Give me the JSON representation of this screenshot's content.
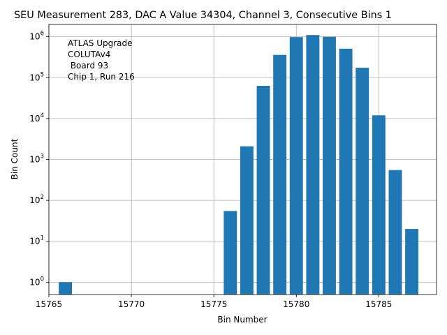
{
  "chart_data": {
    "type": "bar",
    "title": "SEU Measurement 283, DAC A Value 34304, Channel 3, Consecutive Bins 1",
    "xlabel": "Bin Number",
    "ylabel": "Bin Count",
    "yscale": "log",
    "grid": true,
    "xlim": [
      15765.0,
      15788.5
    ],
    "ylim": [
      0.5,
      2000000
    ],
    "x_ticks": [
      15765,
      15770,
      15775,
      15780,
      15785
    ],
    "y_ticks": [
      {
        "value": 1,
        "exp": "0"
      },
      {
        "value": 10,
        "exp": "1"
      },
      {
        "value": 100,
        "exp": "2"
      },
      {
        "value": 1000,
        "exp": "3"
      },
      {
        "value": 10000,
        "exp": "4"
      },
      {
        "value": 100000,
        "exp": "5"
      },
      {
        "value": 1000000,
        "exp": "6"
      }
    ],
    "tick_base": "10",
    "bar_color": "#1f77b4",
    "bars": [
      {
        "x": 15766,
        "value": 1
      },
      {
        "x": 15776,
        "value": 55
      },
      {
        "x": 15777,
        "value": 2100
      },
      {
        "x": 15778,
        "value": 63000
      },
      {
        "x": 15779,
        "value": 360000
      },
      {
        "x": 15780,
        "value": 980000
      },
      {
        "x": 15781,
        "value": 1100000
      },
      {
        "x": 15782,
        "value": 1000000
      },
      {
        "x": 15783,
        "value": 510000
      },
      {
        "x": 15784,
        "value": 175000
      },
      {
        "x": 15785,
        "value": 12000
      },
      {
        "x": 15786,
        "value": 550
      },
      {
        "x": 15787,
        "value": 20
      }
    ],
    "annotation": {
      "placement": "top-left",
      "lines": [
        "ATLAS Upgrade",
        "COLUTAv4",
        " Board 93",
        "Chip 1, Run 216"
      ]
    }
  }
}
